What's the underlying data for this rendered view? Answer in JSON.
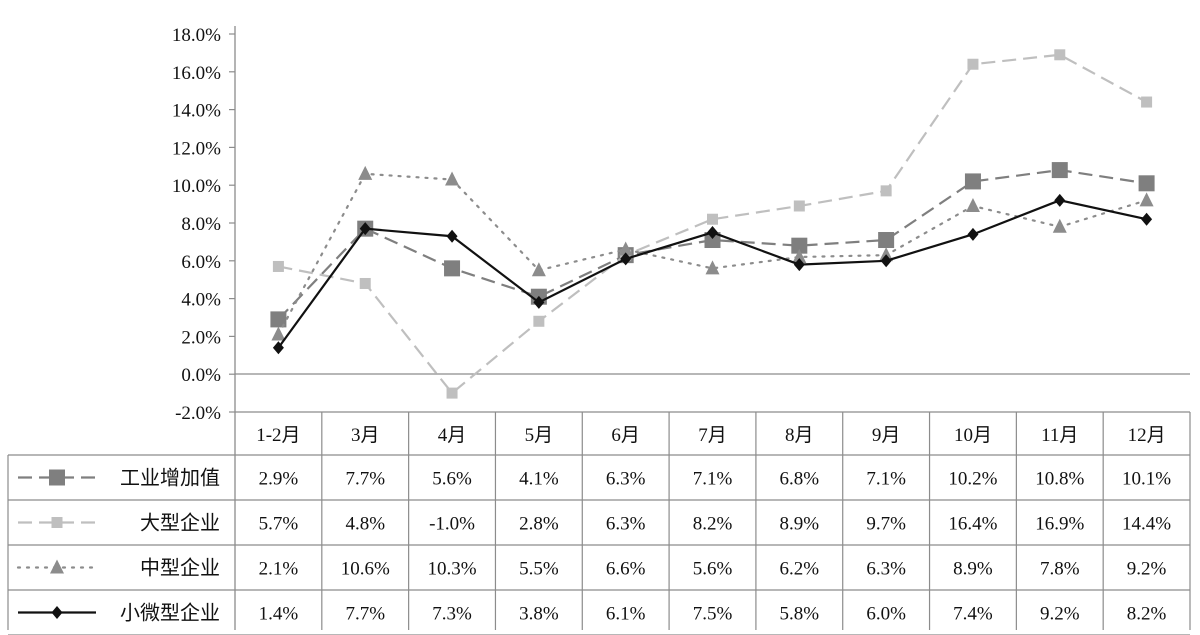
{
  "chart_data": {
    "type": "line",
    "title": "",
    "xlabel": "",
    "ylabel": "",
    "categories": [
      "1-2月",
      "3月",
      "4月",
      "5月",
      "6月",
      "7月",
      "8月",
      "9月",
      "10月",
      "11月",
      "12月"
    ],
    "ylim": [
      -2.0,
      18.0
    ],
    "yticks": [
      "18.0%",
      "16.0%",
      "14.0%",
      "12.0%",
      "10.0%",
      "8.0%",
      "6.0%",
      "4.0%",
      "2.0%",
      "0.0%",
      "-2.0%"
    ],
    "ytick_values": [
      18,
      16,
      14,
      12,
      10,
      8,
      6,
      4,
      2,
      0,
      -2
    ],
    "grid": false,
    "legend": "data-table-left",
    "series": [
      {
        "name": "工业增加值",
        "color": "#7f7f7f",
        "marker": "square",
        "dash": "long-dash",
        "values": [
          2.9,
          7.7,
          5.6,
          4.1,
          6.3,
          7.1,
          6.8,
          7.1,
          10.2,
          10.8,
          10.1
        ],
        "labels": [
          "2.9%",
          "7.7%",
          "5.6%",
          "4.1%",
          "6.3%",
          "7.1%",
          "6.8%",
          "7.1%",
          "10.2%",
          "10.8%",
          "10.1%"
        ]
      },
      {
        "name": "大型企业",
        "color": "#bfbfbf",
        "marker": "square-small",
        "dash": "long-dash",
        "values": [
          5.7,
          4.8,
          -1.0,
          2.8,
          6.3,
          8.2,
          8.9,
          9.7,
          16.4,
          16.9,
          14.4
        ],
        "labels": [
          "5.7%",
          "4.8%",
          "-1.0%",
          "2.8%",
          "6.3%",
          "8.2%",
          "8.9%",
          "9.7%",
          "16.4%",
          "16.9%",
          "14.4%"
        ]
      },
      {
        "name": "中型企业",
        "color": "#8c8c8c",
        "marker": "triangle",
        "dash": "dot",
        "values": [
          2.1,
          10.6,
          10.3,
          5.5,
          6.6,
          5.6,
          6.2,
          6.3,
          8.9,
          7.8,
          9.2
        ],
        "labels": [
          "2.1%",
          "10.6%",
          "10.3%",
          "5.5%",
          "6.6%",
          "5.6%",
          "6.2%",
          "6.3%",
          "8.9%",
          "7.8%",
          "9.2%"
        ]
      },
      {
        "name": "小微型企业",
        "color": "#111111",
        "marker": "diamond",
        "dash": "solid",
        "values": [
          1.4,
          7.7,
          7.3,
          3.8,
          6.1,
          7.5,
          5.8,
          6.0,
          7.4,
          9.2,
          8.2
        ],
        "labels": [
          "1.4%",
          "7.7%",
          "7.3%",
          "3.8%",
          "6.1%",
          "7.5%",
          "5.8%",
          "6.0%",
          "7.4%",
          "9.2%",
          "8.2%"
        ]
      }
    ]
  }
}
